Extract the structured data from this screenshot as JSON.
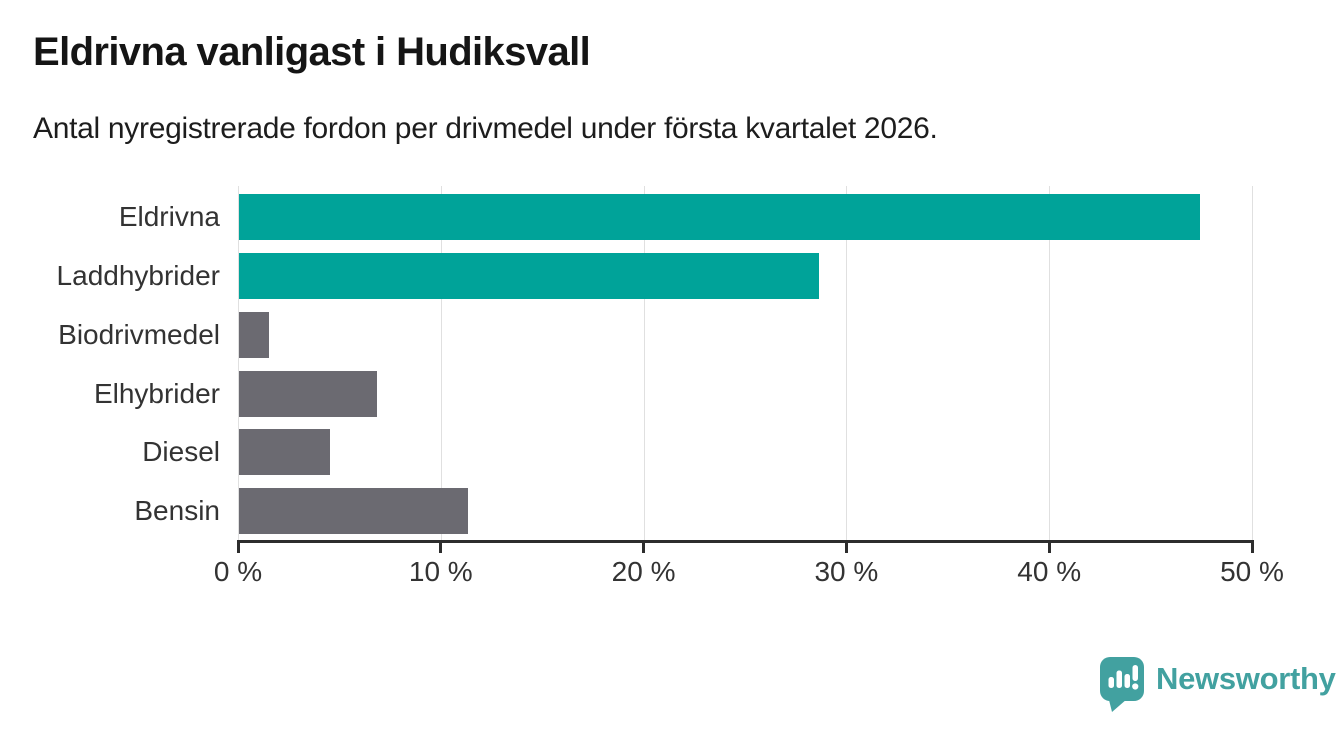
{
  "header": {
    "title": "Eldrivna vanligast i Hudiksvall",
    "subtitle": "Antal nyregistrerade fordon per drivmedel under första kvartalet 2026."
  },
  "chart_data": {
    "type": "bar",
    "orientation": "horizontal",
    "title": "Eldrivna vanligast i Hudiksvall",
    "subtitle": "Antal nyregistrerade fordon per drivmedel under första kvartalet 2026.",
    "categories": [
      "Eldrivna",
      "Laddhybrider",
      "Biodrivmedel",
      "Elhybrider",
      "Diesel",
      "Bensin"
    ],
    "values": [
      47.4,
      28.6,
      1.5,
      6.8,
      4.5,
      11.3
    ],
    "unit": "%",
    "bar_colors": [
      "#00a399",
      "#00a399",
      "#6b6a71",
      "#6b6a71",
      "#6b6a71",
      "#6b6a71"
    ],
    "xlim": [
      0,
      50
    ],
    "xticks": [
      0,
      10,
      20,
      30,
      40,
      50
    ],
    "xtick_labels": [
      "0 %",
      "10 %",
      "20 %",
      "30 %",
      "40 %",
      "50 %"
    ],
    "grid": true,
    "legend": false,
    "colors": {
      "highlight": "#00a399",
      "default_bar": "#6b6a71",
      "gridline": "#e0e0e0",
      "axis": "#2d2d2d",
      "tick_label": "#333333"
    }
  },
  "branding": {
    "logo_text": "Newsworthy",
    "logo_color": "#42a1a0",
    "logo_icon": "speech-bubble-bar-chart"
  }
}
